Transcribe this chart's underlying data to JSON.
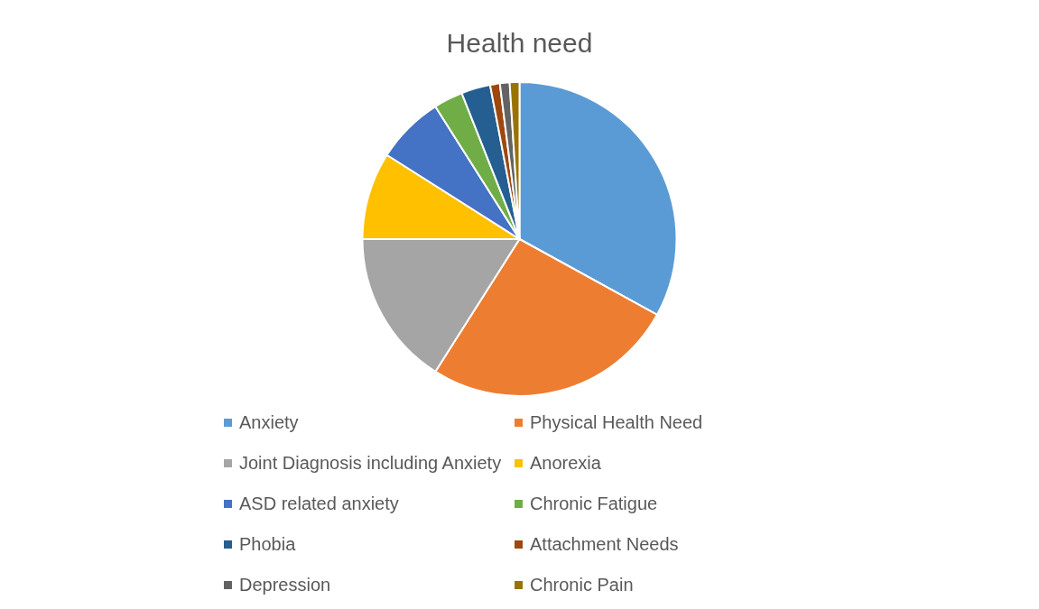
{
  "chart_data": {
    "type": "pie",
    "title": "Health need",
    "categories": [
      "Anxiety",
      "Physical Health Need",
      "Joint Diagnosis including Anxiety",
      "Anorexia",
      "ASD related anxiety",
      "Chronic Fatigue",
      "Phobia",
      "Attachment Needs",
      "Depression",
      "Chronic Pain"
    ],
    "values": [
      33,
      26,
      16,
      9,
      7,
      3,
      3,
      1,
      1,
      1
    ],
    "colors": [
      "#5b9bd5",
      "#ed7d31",
      "#a5a5a5",
      "#ffc000",
      "#4472c4",
      "#70ad47",
      "#255e91",
      "#9e480e",
      "#636363",
      "#997300"
    ],
    "legend": "bottom"
  }
}
